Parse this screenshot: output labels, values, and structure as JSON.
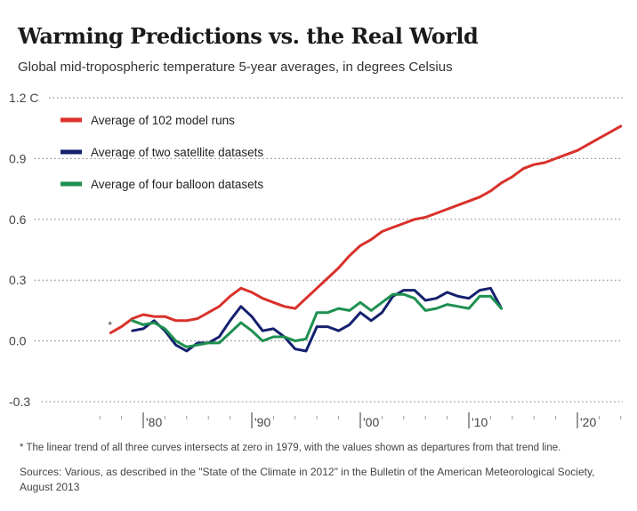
{
  "header": {
    "title": "Warming Predictions vs. the Real World",
    "subtitle": "Global mid-tropospheric temperature 5-year averages, in degrees Celsius"
  },
  "footer": {
    "footnote": "* The linear trend of all three curves intersects at zero in 1979, with the values shown as departures from that trend line.",
    "source": "Sources: Various, as described in the \"State of the Climate in 2012\" in the Bulletin of the American Meteorological Society, August 2013"
  },
  "chart_data": {
    "type": "line",
    "title": "Warming Predictions vs. the Real World",
    "subtitle": "Global mid-tropospheric temperature 5-year averages, in degrees Celsius",
    "xlabel": "",
    "ylabel": "",
    "xlim": [
      1975,
      2025
    ],
    "ylim": [
      -0.3,
      1.2
    ],
    "grid": "dotted horizontal",
    "legend_position": "top-left",
    "y_ticks": [
      {
        "value": 1.2,
        "label": "1.2 C"
      },
      {
        "value": 0.9,
        "label": "0.9"
      },
      {
        "value": 0.6,
        "label": "0.6"
      },
      {
        "value": 0.3,
        "label": "0.3"
      },
      {
        "value": 0.0,
        "label": "0.0"
      },
      {
        "value": -0.3,
        "label": "-0.3"
      }
    ],
    "x_ticks": [
      {
        "value": 1980,
        "label": "'80"
      },
      {
        "value": 1990,
        "label": "'90"
      },
      {
        "value": 2000,
        "label": "'00"
      },
      {
        "value": 2010,
        "label": "'10"
      },
      {
        "value": 2020,
        "label": "'20"
      }
    ],
    "annotations": [
      {
        "text": "*",
        "x": 1977,
        "y": 0.05
      }
    ],
    "series": [
      {
        "name": "Average of 102 model runs",
        "color": "#d9312b",
        "x": [
          1977,
          1978,
          1979,
          1980,
          1981,
          1982,
          1983,
          1984,
          1985,
          1986,
          1987,
          1988,
          1989,
          1990,
          1991,
          1992,
          1993,
          1994,
          1995,
          1996,
          1997,
          1998,
          1999,
          2000,
          2001,
          2002,
          2003,
          2004,
          2005,
          2006,
          2007,
          2008,
          2009,
          2010,
          2011,
          2012,
          2013,
          2014,
          2015,
          2016,
          2017,
          2018,
          2019,
          2020,
          2021,
          2022,
          2023,
          2024
        ],
        "values": [
          0.04,
          0.07,
          0.11,
          0.13,
          0.12,
          0.12,
          0.1,
          0.1,
          0.11,
          0.14,
          0.17,
          0.22,
          0.26,
          0.24,
          0.21,
          0.19,
          0.17,
          0.16,
          0.21,
          0.26,
          0.31,
          0.36,
          0.42,
          0.47,
          0.5,
          0.54,
          0.56,
          0.58,
          0.6,
          0.61,
          0.63,
          0.65,
          0.67,
          0.69,
          0.71,
          0.74,
          0.78,
          0.81,
          0.85,
          0.87,
          0.88,
          0.9,
          0.92,
          0.94,
          0.97,
          1.0,
          1.03,
          1.06
        ]
      },
      {
        "name": "Average of two satellite datasets",
        "color": "#15206e",
        "x": [
          1979,
          1980,
          1981,
          1982,
          1983,
          1984,
          1985,
          1986,
          1987,
          1988,
          1989,
          1990,
          1991,
          1992,
          1993,
          1994,
          1995,
          1996,
          1997,
          1998,
          1999,
          2000,
          2001,
          2002,
          2003,
          2004,
          2005,
          2006,
          2007,
          2008,
          2009,
          2010,
          2011,
          2012,
          2013
        ],
        "values": [
          0.05,
          0.06,
          0.1,
          0.05,
          -0.02,
          -0.05,
          -0.01,
          -0.01,
          0.02,
          0.1,
          0.17,
          0.12,
          0.05,
          0.06,
          0.02,
          -0.04,
          -0.05,
          0.07,
          0.07,
          0.05,
          0.08,
          0.14,
          0.1,
          0.14,
          0.22,
          0.25,
          0.25,
          0.2,
          0.21,
          0.24,
          0.22,
          0.21,
          0.25,
          0.26,
          0.16
        ]
      },
      {
        "name": "Average of four balloon datasets",
        "color": "#1e9050",
        "x": [
          1979,
          1980,
          1981,
          1982,
          1983,
          1984,
          1985,
          1986,
          1987,
          1988,
          1989,
          1990,
          1991,
          1992,
          1993,
          1994,
          1995,
          1996,
          1997,
          1998,
          1999,
          2000,
          2001,
          2002,
          2003,
          2004,
          2005,
          2006,
          2007,
          2008,
          2009,
          2010,
          2011,
          2012,
          2013
        ],
        "values": [
          0.1,
          0.08,
          0.09,
          0.06,
          0.0,
          -0.03,
          -0.02,
          -0.01,
          -0.01,
          0.04,
          0.09,
          0.05,
          0.0,
          0.02,
          0.02,
          0.0,
          0.01,
          0.14,
          0.14,
          0.16,
          0.15,
          0.19,
          0.15,
          0.19,
          0.23,
          0.23,
          0.21,
          0.15,
          0.16,
          0.18,
          0.17,
          0.16,
          0.22,
          0.22,
          0.16
        ]
      }
    ]
  }
}
